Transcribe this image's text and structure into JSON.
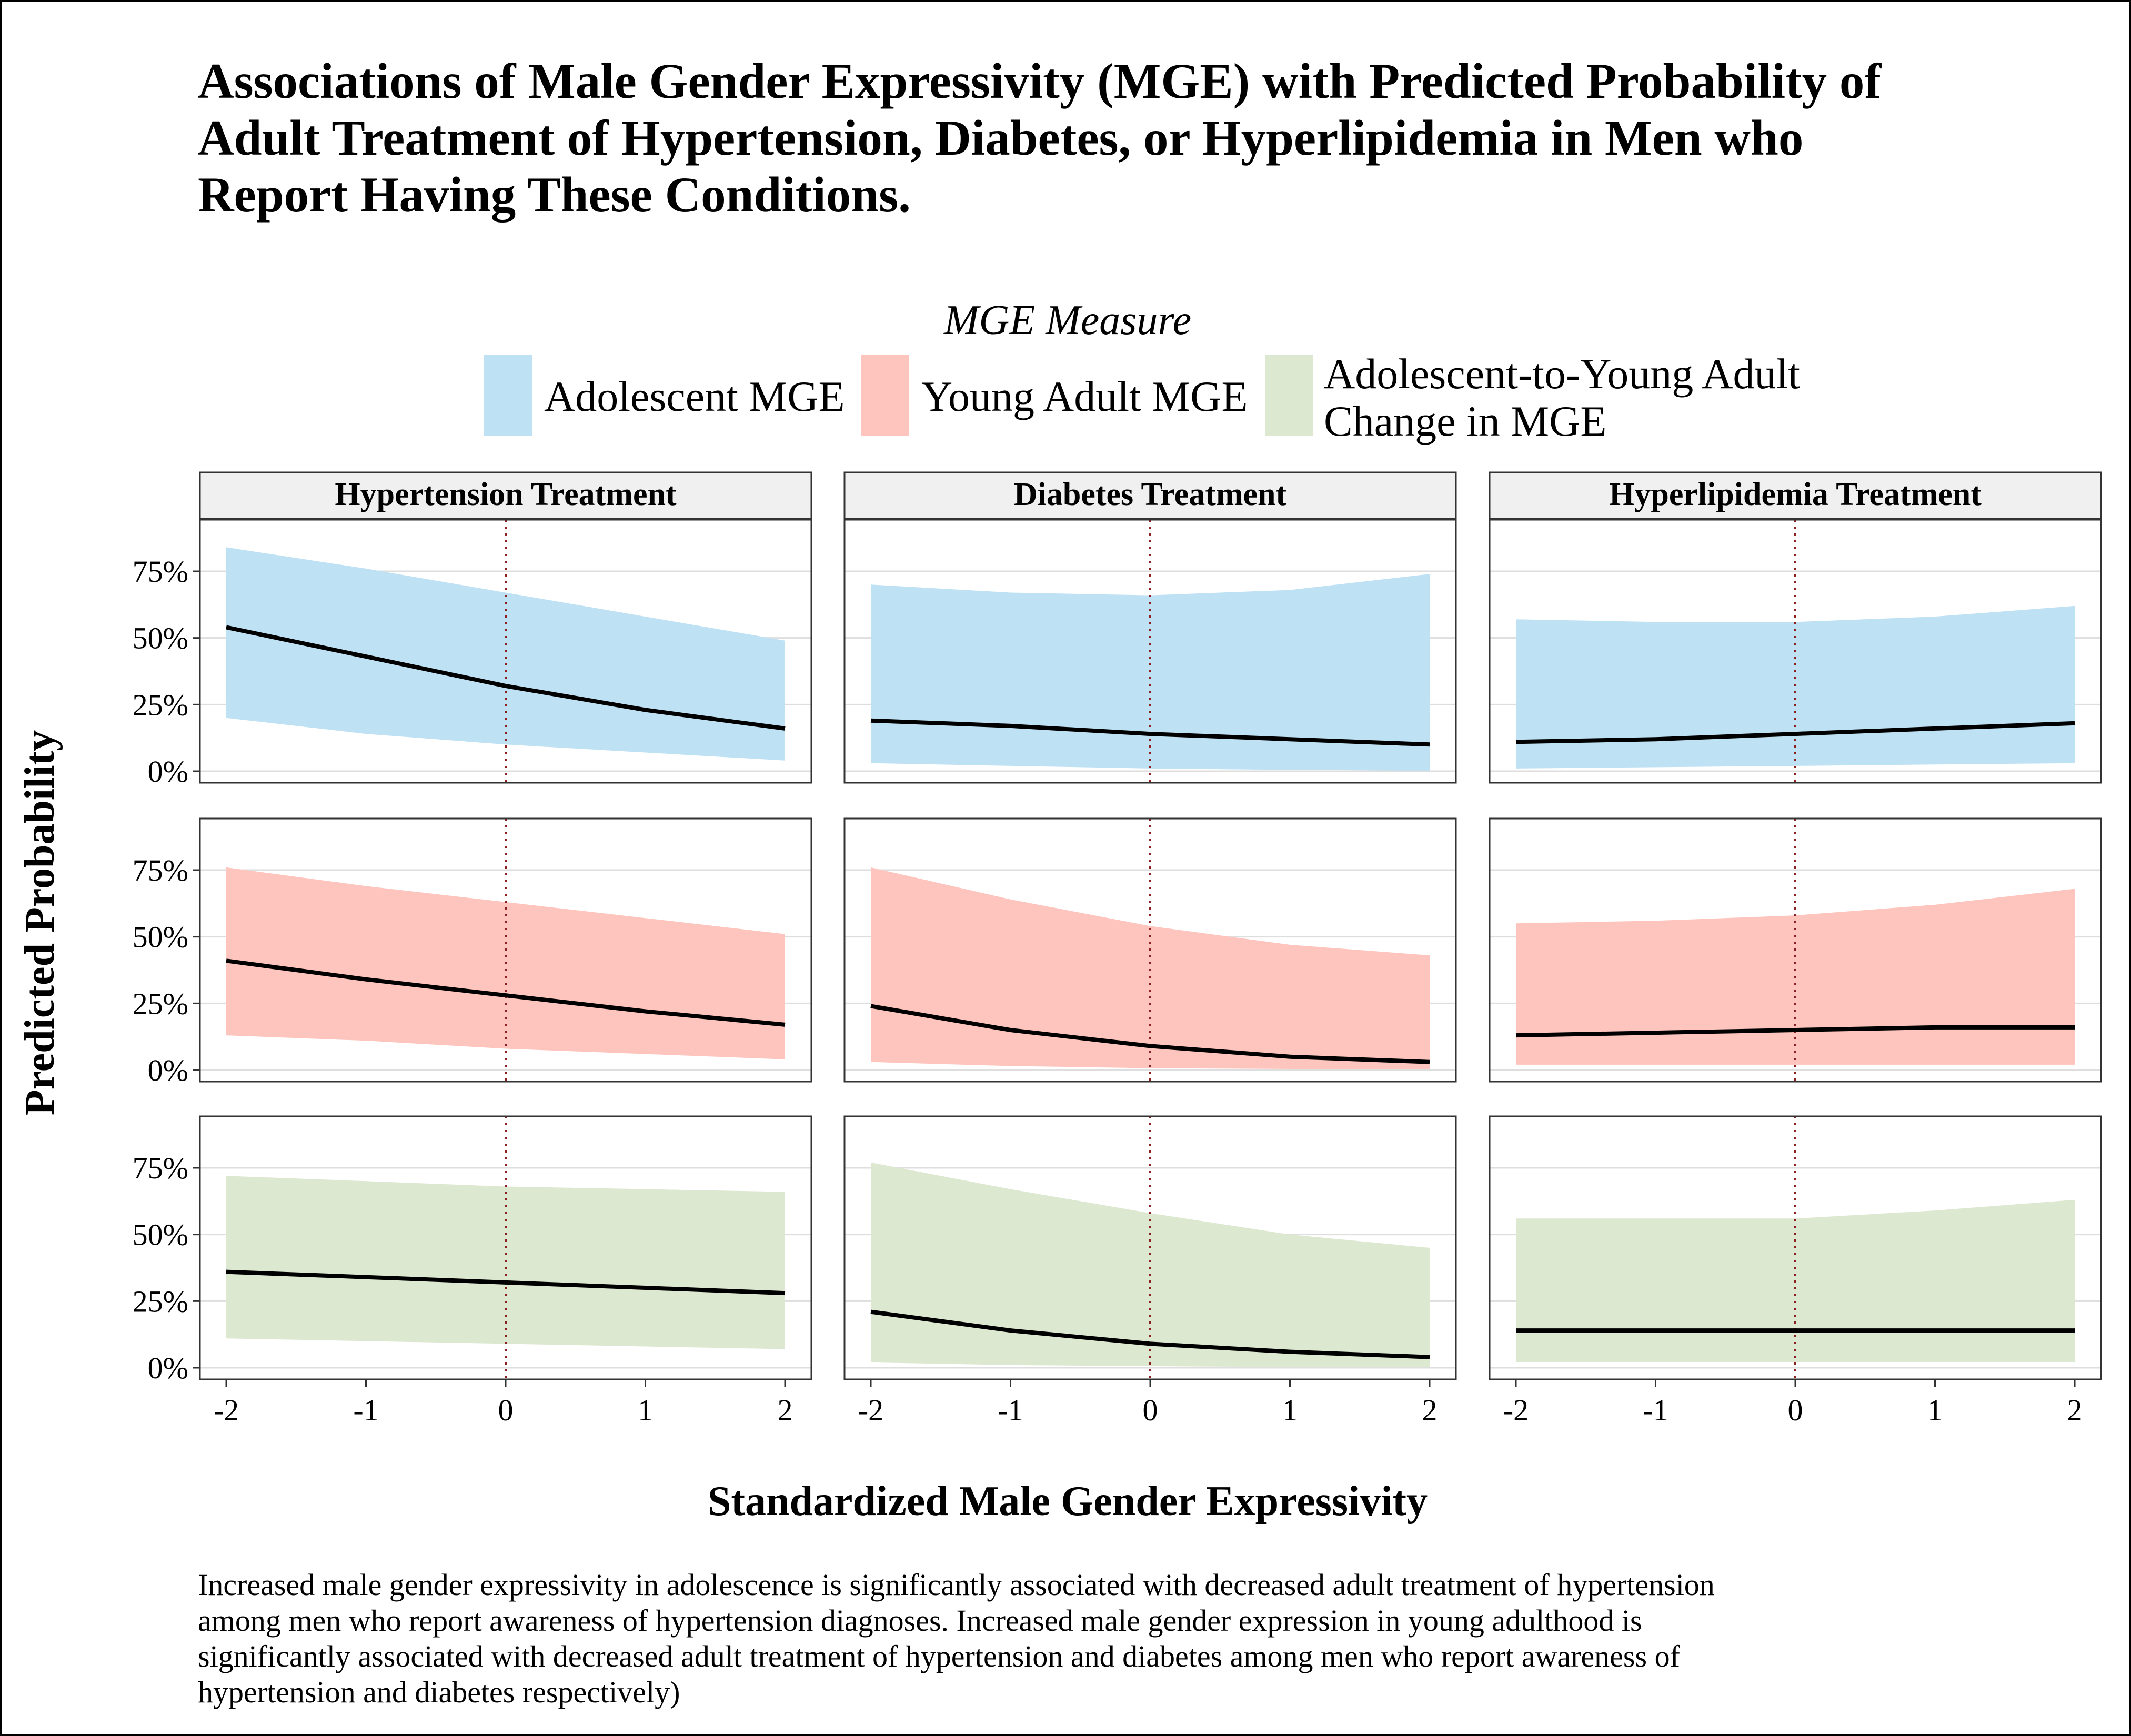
{
  "title_lines": [
    "Associations of Male Gender Expressivity (MGE) with Predicted Probability of",
    "Adult Treatment of Hypertension, Diabetes, or Hyperlipidemia in Men who",
    "Report Having These Conditions."
  ],
  "legend": {
    "title": "MGE Measure",
    "items": [
      {
        "label": "Adolescent MGE",
        "color": "#bfe1f4"
      },
      {
        "label": "Young Adult MGE",
        "color": "#fdc5bd"
      },
      {
        "label_lines": [
          "Adolescent-to-Young Adult",
          "Change in MGE"
        ],
        "color": "#dde8d1"
      }
    ]
  },
  "caption_lines": [
    "Increased male gender expressivity in adolescence is significantly associated with decreased adult treatment of hypertension",
    "among men who report awareness of hypertension diagnoses. Increased male gender expression in young adulthood is",
    "significantly associated with decreased adult treatment of hypertension and diabetes among men who report awareness of",
    "hypertension and diabetes respectively)"
  ],
  "colors": {
    "line": "#000000",
    "reference_line": "#8b2020",
    "grid": "#dedede",
    "strip_fill": "#f0f0f0"
  },
  "chart_data": {
    "type": "area",
    "title": "Associations of Male Gender Expressivity (MGE) with Predicted Probability of Adult Treatment of Hypertension, Diabetes, or Hyperlipidemia in Men who Report Having These Conditions.",
    "xlabel": "Standardized Male Gender Expressivity",
    "ylabel": "Predicted Probability",
    "xlim": [
      -2,
      2
    ],
    "ylim": [
      0,
      0.9
    ],
    "x_ticks": [
      -2,
      -1,
      0,
      1,
      2
    ],
    "x_tick_labels": [
      "-2",
      "-1",
      "0",
      "1",
      "2"
    ],
    "y_ticks": [
      0,
      0.25,
      0.5,
      0.75
    ],
    "y_tick_labels": [
      "0%",
      "25%",
      "50%",
      "75%"
    ],
    "reference_x": 0,
    "grid": true,
    "legend_position": "top",
    "columns": [
      "Hypertension Treatment",
      "Diabetes Treatment",
      "Hyperlipidemia Treatment"
    ],
    "rows": [
      "Adolescent MGE",
      "Young Adult MGE",
      "Adolescent-to-Young Adult Change in MGE"
    ],
    "x": [
      -2,
      -1,
      0,
      1,
      2
    ],
    "panels": [
      {
        "row": "Adolescent MGE",
        "column": "Hypertension Treatment",
        "fit": [
          0.54,
          0.43,
          0.32,
          0.23,
          0.16
        ],
        "lower": [
          0.2,
          0.14,
          0.1,
          0.07,
          0.04
        ],
        "upper": [
          0.84,
          0.76,
          0.67,
          0.58,
          0.49
        ]
      },
      {
        "row": "Adolescent MGE",
        "column": "Diabetes Treatment",
        "fit": [
          0.19,
          0.17,
          0.14,
          0.12,
          0.1
        ],
        "lower": [
          0.03,
          0.02,
          0.01,
          0.005,
          0.002
        ],
        "upper": [
          0.7,
          0.67,
          0.66,
          0.68,
          0.74
        ]
      },
      {
        "row": "Adolescent MGE",
        "column": "Hyperlipidemia Treatment",
        "fit": [
          0.11,
          0.12,
          0.14,
          0.16,
          0.18
        ],
        "lower": [
          0.01,
          0.015,
          0.02,
          0.025,
          0.03
        ],
        "upper": [
          0.57,
          0.56,
          0.56,
          0.58,
          0.62
        ]
      },
      {
        "row": "Young Adult MGE",
        "column": "Hypertension Treatment",
        "fit": [
          0.41,
          0.34,
          0.28,
          0.22,
          0.17
        ],
        "lower": [
          0.13,
          0.11,
          0.08,
          0.06,
          0.04
        ],
        "upper": [
          0.76,
          0.69,
          0.63,
          0.57,
          0.51
        ]
      },
      {
        "row": "Young Adult MGE",
        "column": "Diabetes Treatment",
        "fit": [
          0.24,
          0.15,
          0.09,
          0.05,
          0.03
        ],
        "lower": [
          0.03,
          0.015,
          0.007,
          0.004,
          0.002
        ],
        "upper": [
          0.76,
          0.64,
          0.54,
          0.47,
          0.43
        ]
      },
      {
        "row": "Young Adult MGE",
        "column": "Hyperlipidemia Treatment",
        "fit": [
          0.13,
          0.14,
          0.15,
          0.16,
          0.16
        ],
        "lower": [
          0.02,
          0.02,
          0.02,
          0.02,
          0.02
        ],
        "upper": [
          0.55,
          0.56,
          0.58,
          0.62,
          0.68
        ]
      },
      {
        "row": "Adolescent-to-Young Adult Change in MGE",
        "column": "Hypertension Treatment",
        "fit": [
          0.36,
          0.34,
          0.32,
          0.3,
          0.28
        ],
        "lower": [
          0.11,
          0.1,
          0.09,
          0.08,
          0.07
        ],
        "upper": [
          0.72,
          0.7,
          0.68,
          0.67,
          0.66
        ]
      },
      {
        "row": "Adolescent-to-Young Adult Change in MGE",
        "column": "Diabetes Treatment",
        "fit": [
          0.21,
          0.14,
          0.09,
          0.06,
          0.04
        ],
        "lower": [
          0.02,
          0.01,
          0.006,
          0.003,
          0.002
        ],
        "upper": [
          0.77,
          0.67,
          0.58,
          0.5,
          0.45
        ]
      },
      {
        "row": "Adolescent-to-Young Adult Change in MGE",
        "column": "Hyperlipidemia Treatment",
        "fit": [
          0.14,
          0.14,
          0.14,
          0.14,
          0.14
        ],
        "lower": [
          0.02,
          0.02,
          0.02,
          0.02,
          0.02
        ],
        "upper": [
          0.56,
          0.56,
          0.56,
          0.59,
          0.63
        ]
      }
    ]
  }
}
